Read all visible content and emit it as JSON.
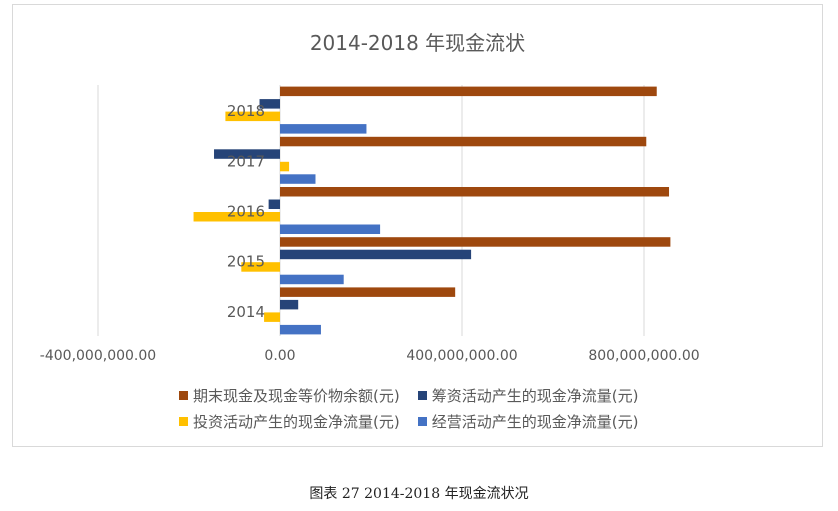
{
  "chart_data": {
    "type": "bar",
    "orientation": "horizontal",
    "title": "2014-2018 年现金流状",
    "categories": [
      "2014",
      "2015",
      "2016",
      "2017",
      "2018"
    ],
    "xlim": [
      -400000000,
      900000000
    ],
    "xticks": [
      -400000000,
      0,
      400000000,
      800000000
    ],
    "xtick_labels": [
      "-400,000,000.00",
      "0.00",
      "400,000,000.00",
      "800,000,000.00"
    ],
    "grid": "vertical",
    "legend_position": "bottom",
    "series": [
      {
        "name": "期末现金及现金等价物余额(元)",
        "color": "#9e480e",
        "values": [
          385000000,
          858000000,
          855000000,
          805000000,
          828000000
        ]
      },
      {
        "name": "筹资活动产生的现金净流量(元)",
        "color": "#264478",
        "values": [
          40000000,
          420000000,
          -25000000,
          -145000000,
          -45000000
        ]
      },
      {
        "name": "投资活动产生的现金净流量(元)",
        "color": "#ffc000",
        "values": [
          -35000000,
          -85000000,
          -190000000,
          20000000,
          -120000000
        ]
      },
      {
        "name": "经营活动产生的现金净流量(元)",
        "color": "#4472c4",
        "values": [
          90000000,
          140000000,
          220000000,
          78000000,
          190000000
        ]
      }
    ]
  },
  "caption": "图表 27 2014-2018 年现金流状况"
}
